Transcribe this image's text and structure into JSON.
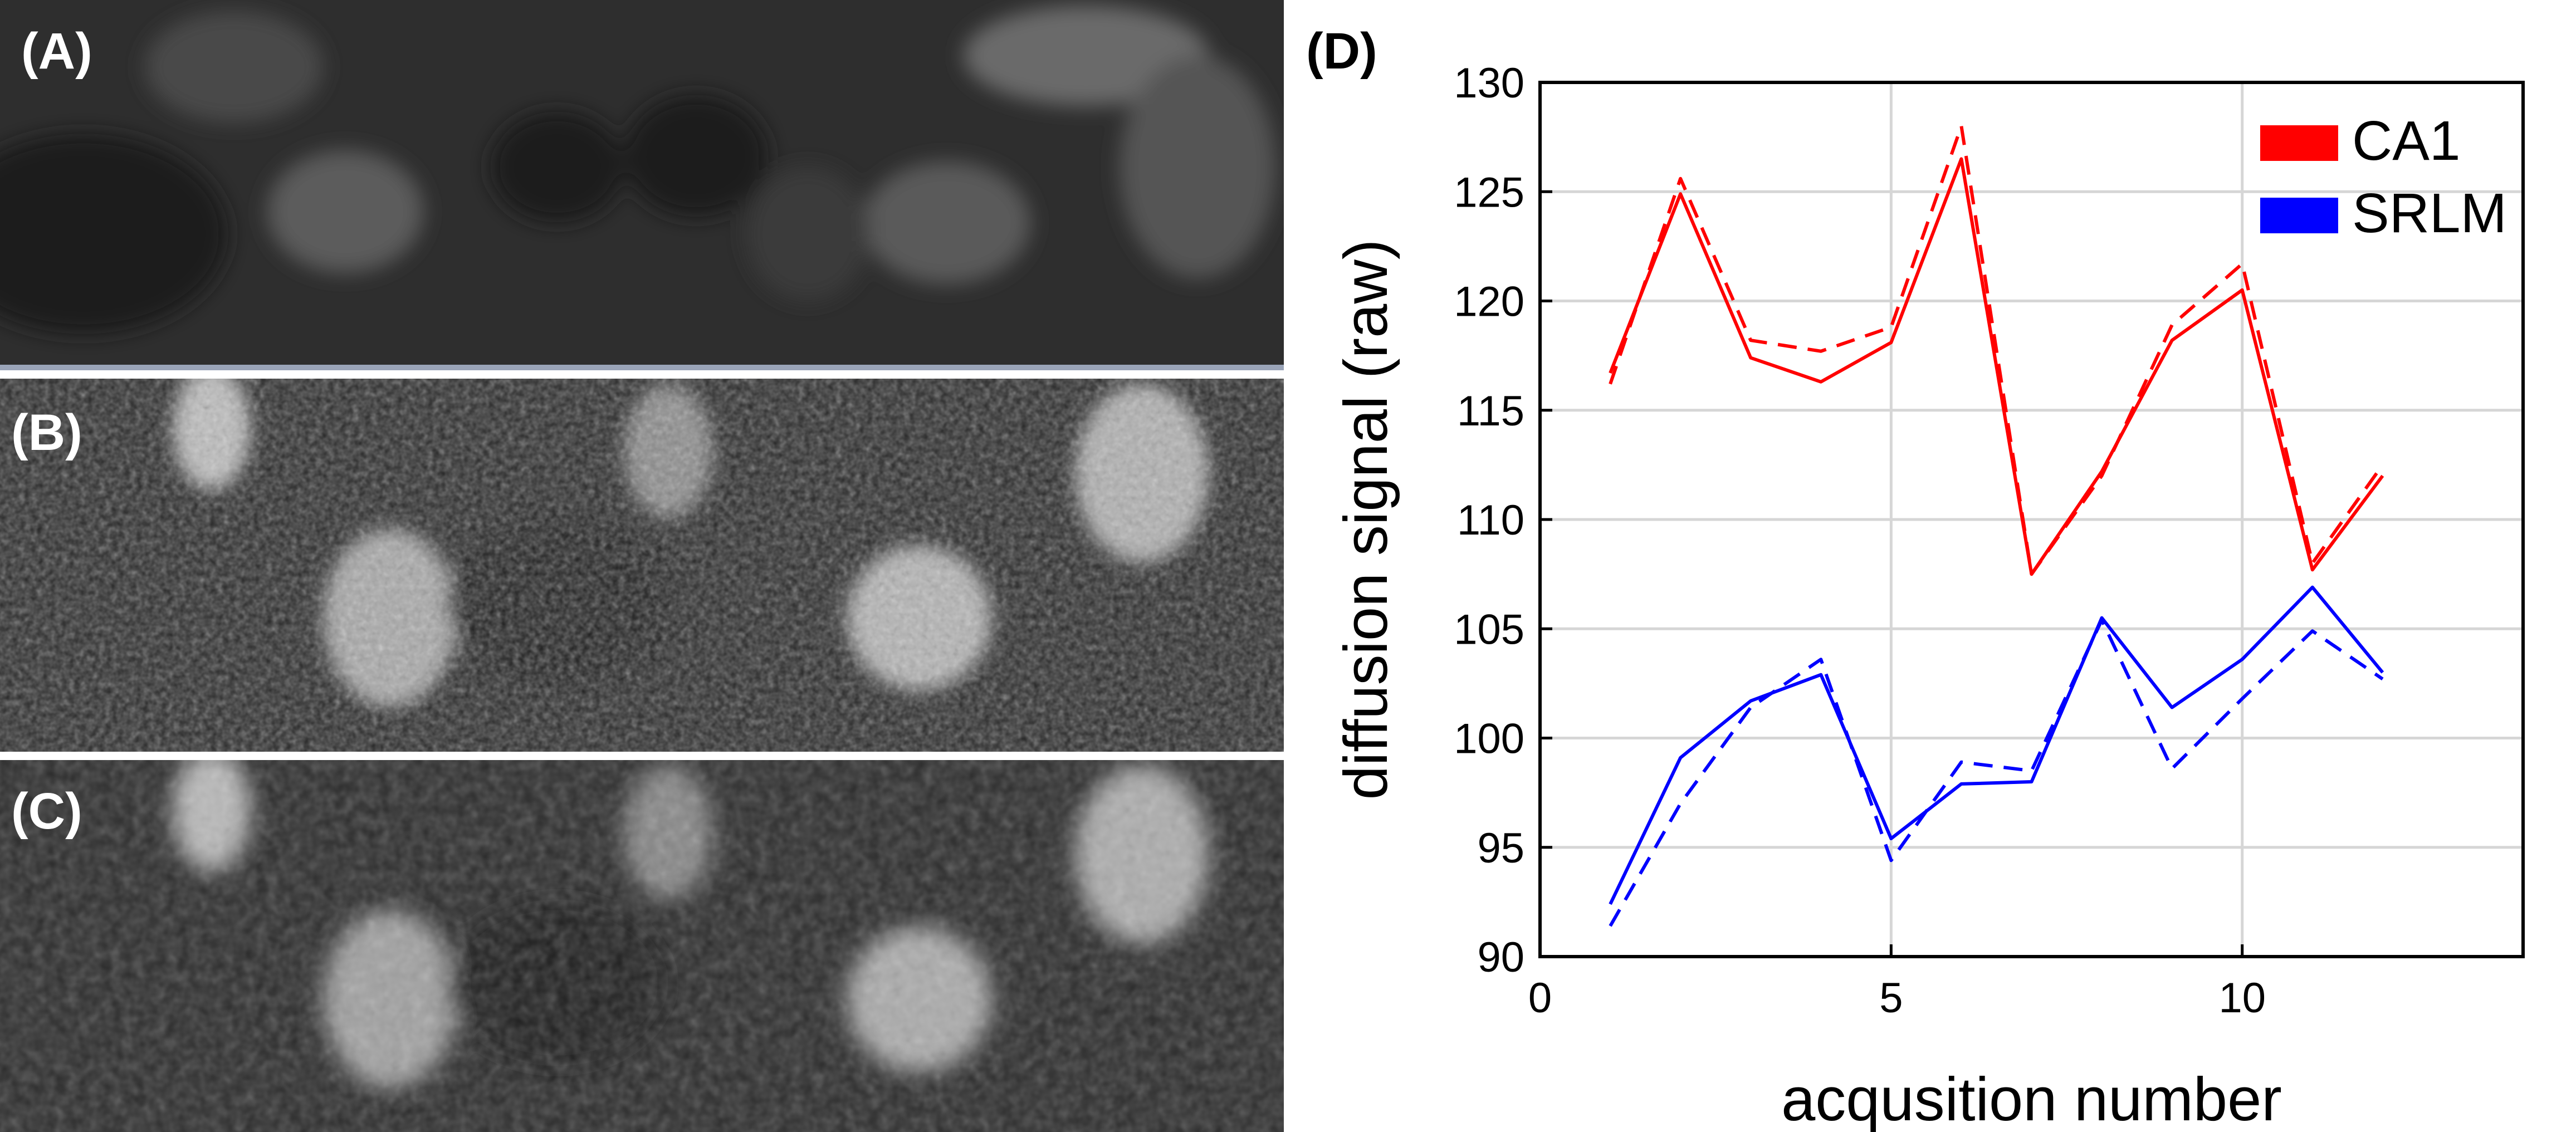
{
  "panels": {
    "a_label": "(A)",
    "b_label": "(B)",
    "c_label": "(C)",
    "d_label": "(D)"
  },
  "chart_data": {
    "type": "line",
    "xlabel": "acqusition number",
    "ylabel": "diffusion signal (raw)",
    "xlim": [
      0,
      14
    ],
    "ylim": [
      90,
      130
    ],
    "xticks": [
      0,
      5,
      10
    ],
    "yticks": [
      90,
      95,
      100,
      105,
      110,
      115,
      120,
      125,
      130
    ],
    "grid": true,
    "legend_position": "top-right",
    "x": [
      1,
      2,
      3,
      4,
      5,
      6,
      7,
      8,
      9,
      10,
      11,
      12
    ],
    "series": [
      {
        "name": "CA1",
        "color": "#ff0000",
        "style": "solid",
        "values": [
          116.7,
          124.9,
          117.4,
          116.3,
          118.1,
          126.5,
          107.5,
          112.2,
          118.2,
          120.5,
          107.7,
          112.0
        ]
      },
      {
        "name": "",
        "color": "#ff0000",
        "style": "dashed",
        "values": [
          116.2,
          125.6,
          118.2,
          117.7,
          118.8,
          128.0,
          107.5,
          112.0,
          118.9,
          121.7,
          108.0,
          112.5
        ]
      },
      {
        "name": "SRLM",
        "color": "#0000ff",
        "style": "solid",
        "values": [
          92.4,
          99.1,
          101.7,
          102.9,
          95.4,
          97.9,
          98.0,
          105.5,
          101.4,
          103.6,
          106.9,
          103.0
        ]
      },
      {
        "name": "",
        "color": "#0000ff",
        "style": "dashed",
        "values": [
          91.4,
          97.0,
          101.4,
          103.6,
          94.4,
          98.9,
          98.5,
          105.4,
          98.6,
          101.8,
          104.9,
          102.7
        ]
      }
    ]
  }
}
